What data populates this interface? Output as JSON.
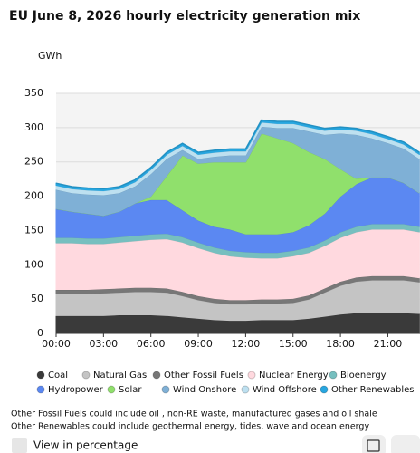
{
  "chart_data": {
    "type": "area",
    "stacked": true,
    "title": "EU June 8, 2026 hourly electricity generation mix",
    "y_label": "GWh",
    "categories": [
      "00:00",
      null,
      null,
      "03:00",
      null,
      null,
      "06:00",
      null,
      null,
      "09:00",
      null,
      null,
      "12:00",
      null,
      null,
      "15:00",
      null,
      null,
      "18:00",
      null,
      null,
      "21:00",
      null,
      null
    ],
    "ylim": [
      0,
      350
    ],
    "yticks": [
      0,
      50,
      100,
      150,
      200,
      250,
      300,
      350
    ],
    "grid": true,
    "series": [
      {
        "name": "Coal",
        "color": "#3a3a3a",
        "values": [
          26,
          26,
          26,
          26,
          27,
          27,
          27,
          26,
          24,
          22,
          20,
          19,
          19,
          20,
          20,
          20,
          22,
          25,
          28,
          30,
          30,
          30,
          30,
          29
        ]
      },
      {
        "name": "Natural Gas",
        "color": "#c4c4c4",
        "values": [
          32,
          32,
          32,
          33,
          33,
          34,
          34,
          34,
          31,
          27,
          25,
          24,
          24,
          24,
          24,
          25,
          28,
          35,
          42,
          46,
          48,
          48,
          48,
          46
        ]
      },
      {
        "name": "Other Fossil Fuels",
        "color": "#777777",
        "values": [
          6,
          6,
          6,
          6,
          6,
          6,
          6,
          6,
          6,
          6,
          6,
          6,
          6,
          6,
          6,
          6,
          6,
          6,
          6,
          6,
          6,
          6,
          6,
          6
        ]
      },
      {
        "name": "Nuclear Energy",
        "color": "#ffd9df",
        "values": [
          68,
          68,
          67,
          66,
          67,
          68,
          70,
          72,
          72,
          70,
          67,
          64,
          62,
          60,
          60,
          62,
          62,
          62,
          64,
          66,
          68,
          68,
          68,
          67
        ]
      },
      {
        "name": "Bioenergy",
        "color": "#76bfbf",
        "values": [
          8,
          8,
          8,
          8,
          8,
          8,
          8,
          8,
          8,
          8,
          8,
          8,
          8,
          8,
          8,
          8,
          8,
          8,
          8,
          8,
          8,
          8,
          8,
          8
        ]
      },
      {
        "name": "Hydropower",
        "color": "#5b88f2",
        "values": [
          42,
          38,
          36,
          33,
          37,
          47,
          50,
          49,
          39,
          32,
          30,
          31,
          26,
          27,
          27,
          27,
          32,
          39,
          52,
          62,
          68,
          68,
          60,
          49
        ]
      },
      {
        "name": "Solar",
        "color": "#90e06c",
        "values": [
          0,
          0,
          0,
          0,
          0,
          0,
          5,
          35,
          80,
          83,
          94,
          98,
          105,
          147,
          140,
          130,
          107,
          80,
          40,
          8,
          0,
          0,
          0,
          0
        ]
      },
      {
        "name": "Wind Onshore",
        "color": "#7fb0d6",
        "values": [
          28,
          27,
          28,
          30,
          27,
          25,
          33,
          25,
          8,
          7,
          8,
          10,
          10,
          10,
          15,
          22,
          30,
          35,
          52,
          64,
          57,
          50,
          50,
          50
        ]
      },
      {
        "name": "Wind Offshore",
        "color": "#bde0f0",
        "values": [
          6,
          6,
          6,
          6,
          6,
          6,
          6,
          6,
          6,
          6,
          6,
          6,
          6,
          6,
          6,
          6,
          6,
          6,
          6,
          6,
          6,
          6,
          6,
          6
        ]
      },
      {
        "name": "Other Renewables",
        "color": "#27a6e0",
        "values": [
          3,
          3,
          3,
          3,
          3,
          3,
          3,
          3,
          3,
          3,
          3,
          3,
          3,
          3,
          3,
          3,
          3,
          3,
          3,
          3,
          3,
          3,
          3,
          3
        ]
      }
    ]
  },
  "notes": [
    "Other Fossil Fuels could include oil , non-RE waste, manufactured gases and oil shale",
    "Other Renewables could include geothermal energy, tides, wave and ocean energy"
  ],
  "controls": {
    "percentage_toggle": "View in percentage"
  }
}
